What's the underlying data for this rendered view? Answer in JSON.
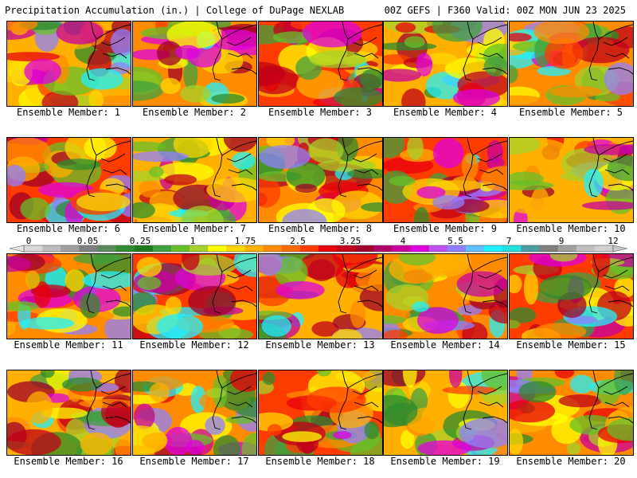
{
  "header": {
    "left": "Precipitation Accumulation (in.) | College of DuPage NEXLAB",
    "right": "00Z GEFS | F360 Valid: 00Z MON JUN 23 2025"
  },
  "member_prefix": "Ensemble Member: ",
  "members": [
    1,
    2,
    3,
    4,
    5,
    6,
    7,
    8,
    9,
    10,
    11,
    12,
    13,
    14,
    15,
    16,
    17,
    18,
    19,
    20
  ],
  "colorbar": {
    "tick_labels": [
      "0",
      "0.05",
      "0.25",
      "1",
      "1.75",
      "2.5",
      "3.25",
      "4",
      "5.5",
      "7",
      "9",
      "12"
    ],
    "colors": [
      "#d9d9d9",
      "#bdbdbd",
      "#a0a0a0",
      "#7f7f7f",
      "#5c8a5c",
      "#2e8b2e",
      "#1f7a1f",
      "#3fa03f",
      "#66c02a",
      "#a6d22a",
      "#ffff00",
      "#ffd700",
      "#ffb000",
      "#ff8c00",
      "#ff6a00",
      "#ff3c00",
      "#e8000b",
      "#c0001a",
      "#a0002a",
      "#b0006a",
      "#c800a0",
      "#e000e0",
      "#c050f0",
      "#9080ff",
      "#60c0ff",
      "#20f0ff",
      "#20e0e0",
      "#4aa0a0",
      "#808080",
      "#a0a0a0",
      "#c0c0c0",
      "#d0d0d0"
    ]
  }
}
